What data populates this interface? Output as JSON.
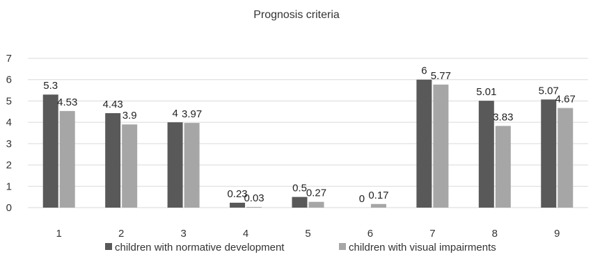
{
  "chart_data": {
    "type": "bar",
    "title": "Prognosis criteria",
    "categories": [
      "1",
      "2",
      "3",
      "4",
      "5",
      "6",
      "7",
      "8",
      "9"
    ],
    "series": [
      {
        "name": "children with normative development",
        "values": [
          5.3,
          4.43,
          4,
          0.23,
          0.5,
          0,
          6,
          5.01,
          5.07
        ],
        "labels": [
          "5.3",
          "4.43",
          "4",
          "0.23",
          "0.5",
          "0",
          "6",
          "5.01",
          "5.07"
        ],
        "color": "#595959"
      },
      {
        "name": "children with visual impairments",
        "values": [
          4.53,
          3.9,
          3.97,
          0.03,
          0.27,
          0.17,
          5.77,
          3.83,
          4.67
        ],
        "labels": [
          "4.53",
          "3.9",
          "3.97",
          "0.03",
          "0.27",
          "0.17",
          "5.77",
          "3.83",
          "4.67"
        ],
        "color": "#a6a6a6"
      }
    ],
    "ylim": [
      0,
      7
    ],
    "yticks": [
      "0",
      "1",
      "2",
      "3",
      "4",
      "5",
      "6",
      "7"
    ],
    "grid": true,
    "legend": "bottom"
  }
}
